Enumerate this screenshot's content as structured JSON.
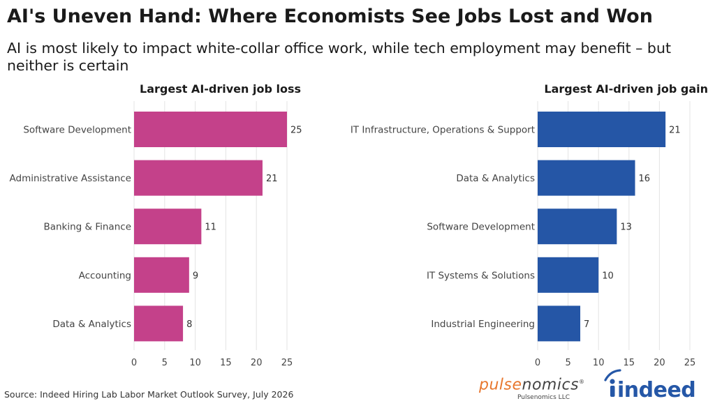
{
  "title": "AI's Uneven Hand: Where Economists See Jobs Lost and Won",
  "subtitle": "AI is most likely to impact white-collar office work, while tech employment may benefit – but neither is certain",
  "source": "Source: Indeed Hiring Lab Labor Market Outlook Survey, July 2026",
  "branding": {
    "pulsenomics_part1": "pulse",
    "pulsenomics_part2": "nomics",
    "pulsenomics_mark": "®",
    "pulsenomics_sub": "Pulsenomics LLC",
    "indeed_logo": "indeed"
  },
  "colors": {
    "loss": "#c4418a",
    "gain": "#2556a6",
    "grid": "#e3e3e3"
  },
  "chart_data": [
    {
      "type": "bar",
      "orientation": "horizontal",
      "title": "Largest AI-driven job loss",
      "categories": [
        "Software Development",
        "Administrative Assistance",
        "Banking & Finance",
        "Accounting",
        "Data & Analytics"
      ],
      "values": [
        25,
        21,
        11,
        9,
        8
      ],
      "xlim": [
        0,
        25
      ],
      "xticks": [
        0,
        5,
        10,
        15,
        20,
        25
      ],
      "grid": true,
      "color": "#c4418a"
    },
    {
      "type": "bar",
      "orientation": "horizontal",
      "title": "Largest AI-driven job gain",
      "categories": [
        "IT Infrastructure, Operations & Support",
        "Data & Analytics",
        "Software Development",
        "IT Systems & Solutions",
        "Industrial Engineering"
      ],
      "values": [
        21,
        16,
        13,
        10,
        7
      ],
      "xlim": [
        0,
        25
      ],
      "xticks": [
        0,
        5,
        10,
        15,
        20,
        25
      ],
      "grid": true,
      "color": "#2556a6"
    }
  ]
}
